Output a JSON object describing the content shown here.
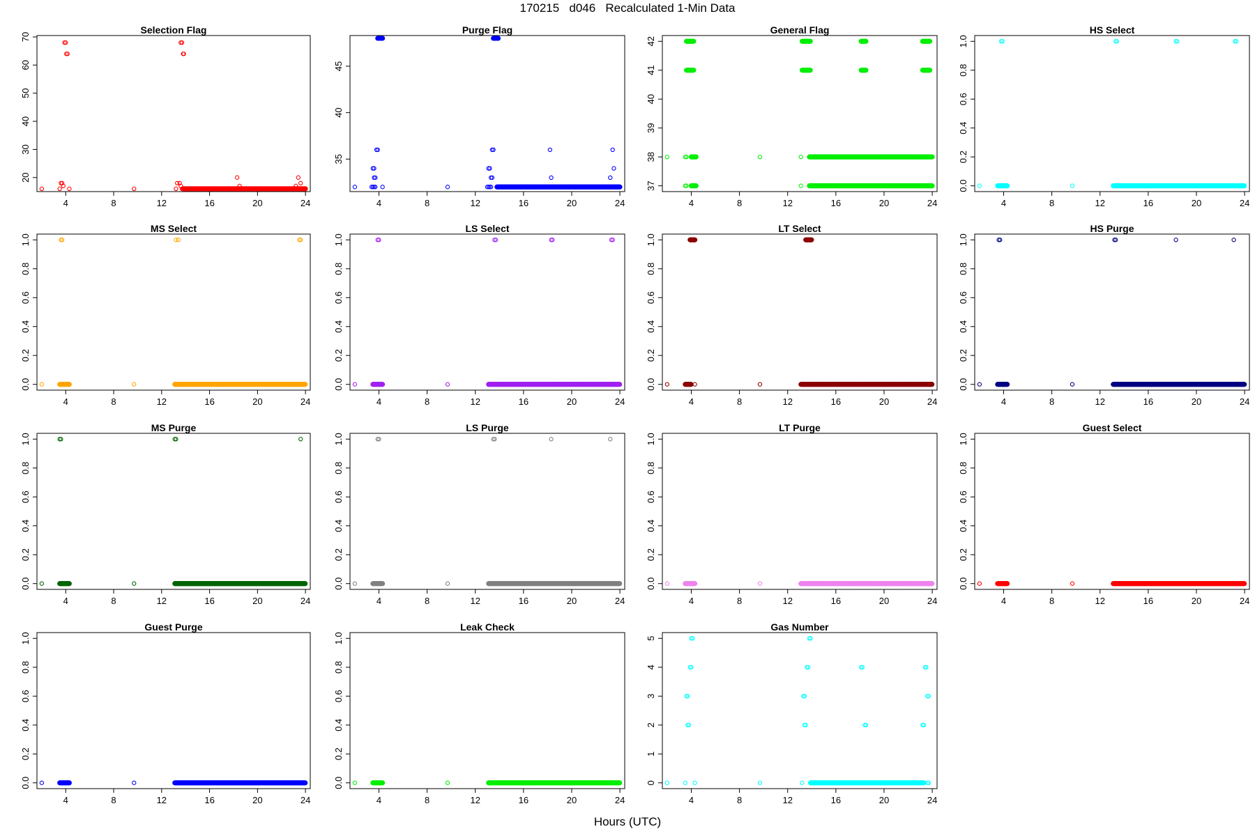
{
  "page": {
    "title": "170215   d046   Recalculated 1-Min Data",
    "xlabel": "Hours (UTC)"
  },
  "chart_data": [
    {
      "type": "scatter",
      "title": "Selection Flag",
      "color": "#ff0000",
      "xlim": [
        1.6,
        24.4
      ],
      "ylim": [
        15,
        70.5
      ],
      "yticks": [
        20,
        30,
        40,
        50,
        60,
        70
      ],
      "xticks": [
        4,
        8,
        12,
        16,
        20,
        24
      ],
      "points": [
        [
          2.0,
          16
        ],
        [
          9.7,
          16
        ],
        [
          3.5,
          16
        ],
        [
          3.6,
          18
        ],
        [
          3.7,
          18
        ],
        [
          3.8,
          17
        ],
        [
          4.3,
          16
        ],
        [
          13.2,
          16
        ],
        [
          13.3,
          18
        ],
        [
          13.5,
          18
        ],
        [
          13.6,
          17
        ],
        [
          13.7,
          16
        ],
        [
          18.3,
          20
        ],
        [
          18.5,
          17
        ],
        [
          23.2,
          17
        ],
        [
          23.4,
          20
        ],
        [
          23.6,
          18
        ],
        [
          23.7,
          16
        ],
        [
          3.9,
          68
        ],
        [
          4.0,
          68
        ],
        [
          4.05,
          64
        ],
        [
          4.15,
          64
        ],
        [
          13.6,
          68
        ],
        [
          13.7,
          68
        ],
        [
          13.8,
          64
        ],
        [
          13.85,
          64
        ]
      ],
      "dense": [
        [
          13.8,
          24.0,
          16
        ]
      ]
    },
    {
      "type": "scatter",
      "title": "Purge Flag",
      "color": "#0000ff",
      "xlim": [
        1.6,
        24.4
      ],
      "ylim": [
        31.5,
        48.3
      ],
      "yticks": [
        35,
        40,
        45
      ],
      "xticks": [
        4,
        8,
        12,
        16,
        20,
        24
      ],
      "points": [
        [
          2.0,
          32
        ],
        [
          9.7,
          32
        ],
        [
          3.4,
          32
        ],
        [
          3.5,
          32
        ],
        [
          3.6,
          32
        ],
        [
          3.7,
          32
        ],
        [
          3.5,
          34
        ],
        [
          3.6,
          34
        ],
        [
          3.6,
          33
        ],
        [
          3.7,
          33
        ],
        [
          3.8,
          36
        ],
        [
          3.9,
          36
        ],
        [
          4.3,
          32
        ],
        [
          13.0,
          32
        ],
        [
          13.1,
          32
        ],
        [
          13.2,
          32
        ],
        [
          13.3,
          32
        ],
        [
          13.1,
          34
        ],
        [
          13.2,
          34
        ],
        [
          13.3,
          33
        ],
        [
          13.4,
          33
        ],
        [
          13.4,
          36
        ],
        [
          13.5,
          36
        ],
        [
          18.2,
          36
        ],
        [
          18.3,
          33
        ],
        [
          23.2,
          33
        ],
        [
          23.4,
          36
        ],
        [
          23.5,
          34
        ]
      ],
      "dense": [
        [
          3.9,
          4.3,
          48
        ],
        [
          13.5,
          13.9,
          48
        ],
        [
          13.8,
          24.0,
          32
        ]
      ]
    },
    {
      "type": "scatter",
      "title": "General Flag",
      "color": "#00ee00",
      "xlim": [
        1.6,
        24.4
      ],
      "ylim": [
        36.8,
        42.2
      ],
      "yticks": [
        37,
        38,
        39,
        40,
        41,
        42
      ],
      "xticks": [
        4,
        8,
        12,
        16,
        20,
        24
      ],
      "points": [
        [
          2.0,
          38
        ],
        [
          9.7,
          38
        ],
        [
          3.5,
          38
        ],
        [
          3.6,
          38
        ],
        [
          3.5,
          37
        ],
        [
          3.6,
          37
        ],
        [
          13.1,
          38
        ],
        [
          13.1,
          37
        ]
      ],
      "dense": [
        [
          3.6,
          4.2,
          42
        ],
        [
          3.6,
          4.2,
          41
        ],
        [
          4.0,
          4.4,
          38
        ],
        [
          4.0,
          4.4,
          37
        ],
        [
          13.2,
          13.9,
          42
        ],
        [
          13.2,
          13.9,
          41
        ],
        [
          13.8,
          24.0,
          38
        ],
        [
          13.8,
          24.0,
          37
        ],
        [
          18.1,
          18.5,
          42
        ],
        [
          18.1,
          18.5,
          41
        ],
        [
          23.2,
          23.8,
          42
        ],
        [
          23.2,
          23.8,
          41
        ]
      ]
    },
    {
      "type": "scatter",
      "title": "HS Select",
      "color": "#00ffff",
      "xlim": [
        1.6,
        24.4
      ],
      "ylim": [
        -0.04,
        1.04
      ],
      "yticks": [
        0.0,
        0.2,
        0.4,
        0.6,
        0.8,
        1.0
      ],
      "xticks": [
        4,
        8,
        12,
        16,
        20,
        24
      ],
      "points": [
        [
          2.0,
          0
        ],
        [
          9.7,
          0
        ],
        [
          3.8,
          1
        ],
        [
          3.9,
          1
        ],
        [
          13.3,
          1
        ],
        [
          13.4,
          1
        ],
        [
          18.3,
          1
        ],
        [
          18.4,
          1
        ],
        [
          23.2,
          1
        ],
        [
          23.3,
          1
        ]
      ],
      "dense": [
        [
          3.5,
          4.3,
          0
        ],
        [
          13.1,
          24.0,
          0
        ]
      ]
    },
    {
      "type": "scatter",
      "title": "MS Select",
      "color": "#ffa500",
      "xlim": [
        1.6,
        24.4
      ],
      "ylim": [
        -0.04,
        1.04
      ],
      "yticks": [
        0.0,
        0.2,
        0.4,
        0.6,
        0.8,
        1.0
      ],
      "xticks": [
        4,
        8,
        12,
        16,
        20,
        24
      ],
      "points": [
        [
          2.0,
          0
        ],
        [
          9.7,
          0
        ],
        [
          3.6,
          1
        ],
        [
          3.7,
          1
        ],
        [
          13.2,
          1
        ],
        [
          13.4,
          1
        ],
        [
          23.5,
          1
        ],
        [
          23.6,
          1
        ]
      ],
      "dense": [
        [
          3.5,
          4.3,
          0
        ],
        [
          13.1,
          24.0,
          0
        ]
      ]
    },
    {
      "type": "scatter",
      "title": "LS Select",
      "color": "#a020f0",
      "xlim": [
        1.6,
        24.4
      ],
      "ylim": [
        -0.04,
        1.04
      ],
      "yticks": [
        0.0,
        0.2,
        0.4,
        0.6,
        0.8,
        1.0
      ],
      "xticks": [
        4,
        8,
        12,
        16,
        20,
        24
      ],
      "points": [
        [
          2.0,
          0
        ],
        [
          9.7,
          0
        ],
        [
          3.9,
          1
        ],
        [
          4.0,
          1
        ],
        [
          13.6,
          1
        ],
        [
          13.7,
          1
        ],
        [
          18.3,
          1
        ],
        [
          18.4,
          1
        ],
        [
          23.3,
          1
        ],
        [
          23.4,
          1
        ]
      ],
      "dense": [
        [
          3.5,
          4.3,
          0
        ],
        [
          13.1,
          24.0,
          0
        ]
      ]
    },
    {
      "type": "scatter",
      "title": "LT Select",
      "color": "#8b0000",
      "xlim": [
        1.6,
        24.4
      ],
      "ylim": [
        -0.04,
        1.04
      ],
      "yticks": [
        0.0,
        0.2,
        0.4,
        0.6,
        0.8,
        1.0
      ],
      "xticks": [
        4,
        8,
        12,
        16,
        20,
        24
      ],
      "points": [
        [
          2.0,
          0
        ],
        [
          9.7,
          0
        ],
        [
          4.3,
          0
        ]
      ],
      "dense": [
        [
          3.5,
          4.0,
          0
        ],
        [
          3.9,
          4.3,
          1
        ],
        [
          13.1,
          24.0,
          0
        ],
        [
          13.5,
          14.0,
          1
        ]
      ]
    },
    {
      "type": "scatter",
      "title": "HS Purge",
      "color": "#000080",
      "xlim": [
        1.6,
        24.4
      ],
      "ylim": [
        -0.04,
        1.04
      ],
      "yticks": [
        0.0,
        0.2,
        0.4,
        0.6,
        0.8,
        1.0
      ],
      "xticks": [
        4,
        8,
        12,
        16,
        20,
        24
      ],
      "points": [
        [
          2.0,
          0
        ],
        [
          9.7,
          0
        ],
        [
          3.6,
          1
        ],
        [
          3.7,
          1
        ],
        [
          13.2,
          1
        ],
        [
          13.3,
          1
        ],
        [
          18.3,
          1
        ],
        [
          23.1,
          1
        ]
      ],
      "dense": [
        [
          3.5,
          4.3,
          0
        ],
        [
          13.1,
          24.0,
          0
        ]
      ]
    },
    {
      "type": "scatter",
      "title": "MS Purge",
      "color": "#006400",
      "xlim": [
        1.6,
        24.4
      ],
      "ylim": [
        -0.04,
        1.04
      ],
      "yticks": [
        0.0,
        0.2,
        0.4,
        0.6,
        0.8,
        1.0
      ],
      "xticks": [
        4,
        8,
        12,
        16,
        20,
        24
      ],
      "points": [
        [
          2.0,
          0
        ],
        [
          9.7,
          0
        ],
        [
          3.5,
          1
        ],
        [
          3.6,
          1
        ],
        [
          13.1,
          1
        ],
        [
          13.2,
          1
        ],
        [
          23.6,
          1
        ]
      ],
      "dense": [
        [
          3.5,
          4.3,
          0
        ],
        [
          13.1,
          24.0,
          0
        ]
      ]
    },
    {
      "type": "scatter",
      "title": "LS Purge",
      "color": "#808080",
      "xlim": [
        1.6,
        24.4
      ],
      "ylim": [
        -0.04,
        1.04
      ],
      "yticks": [
        0.0,
        0.2,
        0.4,
        0.6,
        0.8,
        1.0
      ],
      "xticks": [
        4,
        8,
        12,
        16,
        20,
        24
      ],
      "points": [
        [
          2.0,
          0
        ],
        [
          9.7,
          0
        ],
        [
          3.9,
          1
        ],
        [
          4.0,
          1
        ],
        [
          13.5,
          1
        ],
        [
          13.6,
          1
        ],
        [
          18.3,
          1
        ],
        [
          23.2,
          1
        ]
      ],
      "dense": [
        [
          3.5,
          4.3,
          0
        ],
        [
          13.1,
          24.0,
          0
        ]
      ]
    },
    {
      "type": "scatter",
      "title": "LT Purge",
      "color": "#ee82ee",
      "xlim": [
        1.6,
        24.4
      ],
      "ylim": [
        -0.04,
        1.04
      ],
      "yticks": [
        0.0,
        0.2,
        0.4,
        0.6,
        0.8,
        1.0
      ],
      "xticks": [
        4,
        8,
        12,
        16,
        20,
        24
      ],
      "points": [
        [
          2.0,
          0
        ],
        [
          9.7,
          0
        ]
      ],
      "dense": [
        [
          3.5,
          4.3,
          0
        ],
        [
          13.1,
          24.0,
          0
        ]
      ]
    },
    {
      "type": "scatter",
      "title": "Guest Select",
      "color": "#ff0000",
      "xlim": [
        1.6,
        24.4
      ],
      "ylim": [
        -0.04,
        1.04
      ],
      "yticks": [
        0.0,
        0.2,
        0.4,
        0.6,
        0.8,
        1.0
      ],
      "xticks": [
        4,
        8,
        12,
        16,
        20,
        24
      ],
      "points": [
        [
          2.0,
          0
        ],
        [
          9.7,
          0
        ]
      ],
      "dense": [
        [
          3.5,
          4.3,
          0
        ],
        [
          13.1,
          24.0,
          0
        ]
      ]
    },
    {
      "type": "scatter",
      "title": "Guest Purge",
      "color": "#0000ff",
      "xlim": [
        1.6,
        24.4
      ],
      "ylim": [
        -0.04,
        1.04
      ],
      "yticks": [
        0.0,
        0.2,
        0.4,
        0.6,
        0.8,
        1.0
      ],
      "xticks": [
        4,
        8,
        12,
        16,
        20,
        24
      ],
      "points": [
        [
          2.0,
          0
        ],
        [
          9.7,
          0
        ]
      ],
      "dense": [
        [
          3.5,
          4.3,
          0
        ],
        [
          13.1,
          24.0,
          0
        ]
      ]
    },
    {
      "type": "scatter",
      "title": "Leak Check",
      "color": "#00ee00",
      "xlim": [
        1.6,
        24.4
      ],
      "ylim": [
        -0.04,
        1.04
      ],
      "yticks": [
        0.0,
        0.2,
        0.4,
        0.6,
        0.8,
        1.0
      ],
      "xticks": [
        4,
        8,
        12,
        16,
        20,
        24
      ],
      "points": [
        [
          2.0,
          0
        ],
        [
          9.7,
          0
        ]
      ],
      "dense": [
        [
          3.5,
          4.3,
          0
        ],
        [
          13.1,
          24.0,
          0
        ]
      ]
    },
    {
      "type": "scatter",
      "title": "Gas Number",
      "color": "#00ffff",
      "xlim": [
        1.6,
        24.4
      ],
      "ylim": [
        -0.2,
        5.2
      ],
      "yticks": [
        0,
        1,
        2,
        3,
        4,
        5
      ],
      "xticks": [
        4,
        8,
        12,
        16,
        20,
        24
      ],
      "points": [
        [
          2.0,
          0
        ],
        [
          9.7,
          0
        ],
        [
          3.5,
          0
        ],
        [
          4.3,
          0
        ],
        [
          3.6,
          3
        ],
        [
          3.7,
          3
        ],
        [
          3.7,
          2
        ],
        [
          3.8,
          2
        ],
        [
          3.9,
          4
        ],
        [
          4.0,
          4
        ],
        [
          4.0,
          5
        ],
        [
          4.1,
          5
        ],
        [
          13.2,
          0
        ],
        [
          13.3,
          3
        ],
        [
          13.4,
          3
        ],
        [
          13.4,
          2
        ],
        [
          13.5,
          2
        ],
        [
          13.6,
          4
        ],
        [
          13.7,
          4
        ],
        [
          13.8,
          5
        ],
        [
          13.9,
          5
        ],
        [
          18.1,
          4
        ],
        [
          18.2,
          4
        ],
        [
          18.4,
          2
        ],
        [
          18.5,
          2
        ],
        [
          23.2,
          2
        ],
        [
          23.3,
          2
        ],
        [
          23.4,
          4
        ],
        [
          23.5,
          4
        ],
        [
          23.6,
          3
        ],
        [
          23.7,
          3
        ],
        [
          23.6,
          0
        ],
        [
          23.7,
          0
        ]
      ],
      "dense": [
        [
          13.9,
          23.3,
          0
        ]
      ]
    }
  ]
}
